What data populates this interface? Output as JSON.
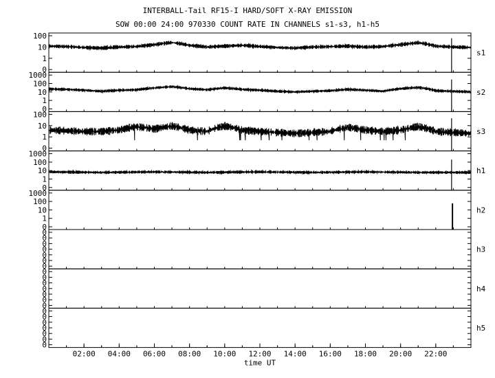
{
  "chart_data": {
    "type": "line",
    "title": "INTERBALL-Tail RF15-I HARD/SOFT X-RAY EMISSION",
    "subtitle": "SOW 00:00 24:00 970330  COUNT RATE IN CHANNELS s1-s3, h1-h5",
    "xlabel": "time UT",
    "x_ticks": [
      "02:00",
      "04:00",
      "06:00",
      "08:00",
      "10:00",
      "12:00",
      "14:00",
      "16:00",
      "18:00",
      "20:00",
      "22:00"
    ],
    "xlim_hours": [
      0,
      24
    ],
    "grid": false,
    "panels": [
      {
        "name": "s1",
        "y_ticks": [
          "100",
          "10",
          "1",
          "0"
        ],
        "scale": "log",
        "baseline": [
          [
            0,
            12
          ],
          [
            1,
            11
          ],
          [
            2,
            9
          ],
          [
            3,
            8
          ],
          [
            4,
            10
          ],
          [
            5,
            11
          ],
          [
            6,
            16
          ],
          [
            7,
            25
          ],
          [
            8,
            14
          ],
          [
            9,
            10
          ],
          [
            10,
            12
          ],
          [
            11,
            14
          ],
          [
            12,
            11
          ],
          [
            13,
            9
          ],
          [
            14,
            8
          ],
          [
            15,
            10
          ],
          [
            16,
            11
          ],
          [
            17,
            12
          ],
          [
            18,
            10
          ],
          [
            19,
            11
          ],
          [
            20,
            16
          ],
          [
            21,
            24
          ],
          [
            22,
            12
          ],
          [
            23,
            10
          ],
          [
            24,
            9
          ]
        ],
        "spikes": [
          [
            22.9,
            60
          ]
        ]
      },
      {
        "name": "s2",
        "y_ticks": [
          "1000",
          "100",
          "10",
          "1",
          "0"
        ],
        "scale": "log",
        "baseline": [
          [
            0,
            22
          ],
          [
            1,
            20
          ],
          [
            2,
            16
          ],
          [
            3,
            12
          ],
          [
            4,
            16
          ],
          [
            5,
            18
          ],
          [
            6,
            30
          ],
          [
            7,
            42
          ],
          [
            8,
            24
          ],
          [
            9,
            18
          ],
          [
            10,
            30
          ],
          [
            11,
            20
          ],
          [
            12,
            16
          ],
          [
            13,
            12
          ],
          [
            14,
            10
          ],
          [
            15,
            12
          ],
          [
            16,
            14
          ],
          [
            17,
            20
          ],
          [
            18,
            16
          ],
          [
            19,
            12
          ],
          [
            20,
            24
          ],
          [
            21,
            34
          ],
          [
            22,
            14
          ],
          [
            23,
            12
          ],
          [
            24,
            10
          ]
        ],
        "spikes": [
          [
            22.9,
            300
          ]
        ]
      },
      {
        "name": "s3",
        "y_ticks": [
          "100",
          "10",
          "1",
          "0"
        ],
        "scale": "log",
        "baseline": [
          [
            0,
            4
          ],
          [
            1,
            3.5
          ],
          [
            2,
            3
          ],
          [
            3,
            3
          ],
          [
            4,
            4
          ],
          [
            5,
            8
          ],
          [
            6,
            5
          ],
          [
            7,
            9
          ],
          [
            8,
            4
          ],
          [
            9,
            3
          ],
          [
            10,
            9
          ],
          [
            11,
            4
          ],
          [
            12,
            3
          ],
          [
            13,
            2.5
          ],
          [
            14,
            2
          ],
          [
            15,
            2.5
          ],
          [
            16,
            3
          ],
          [
            17,
            7
          ],
          [
            18,
            4
          ],
          [
            19,
            3
          ],
          [
            20,
            4
          ],
          [
            21,
            8
          ],
          [
            22,
            3
          ],
          [
            23,
            2.5
          ],
          [
            24,
            2
          ]
        ],
        "spikes": [
          [
            22.9,
            45
          ]
        ]
      },
      {
        "name": "h1",
        "y_ticks": [
          "1000",
          "100",
          "10",
          "1",
          "0"
        ],
        "scale": "log",
        "baseline": [
          [
            0,
            7
          ],
          [
            3,
            6
          ],
          [
            6,
            7
          ],
          [
            9,
            6
          ],
          [
            12,
            7
          ],
          [
            15,
            6
          ],
          [
            18,
            7
          ],
          [
            21,
            6
          ],
          [
            24,
            6
          ]
        ],
        "spikes": [
          [
            22.9,
            200
          ]
        ]
      },
      {
        "name": "h2",
        "y_ticks": [
          "1000",
          "100",
          "10",
          "1",
          "0"
        ],
        "scale": "log",
        "baseline": [],
        "spikes": [
          [
            22.95,
            60
          ]
        ]
      },
      {
        "name": "h3",
        "y_ticks": [
          "0",
          "0",
          "0",
          "0",
          "0",
          "0",
          "0"
        ],
        "scale": "linear",
        "baseline": [],
        "spikes": []
      },
      {
        "name": "h4",
        "y_ticks": [
          "0",
          "0",
          "0",
          "0",
          "0",
          "0",
          "0"
        ],
        "scale": "linear",
        "baseline": [],
        "spikes": []
      },
      {
        "name": "h5",
        "y_ticks": [
          "0",
          "0",
          "0",
          "0",
          "0",
          "0",
          "0"
        ],
        "scale": "linear",
        "baseline": [],
        "spikes": []
      }
    ]
  }
}
